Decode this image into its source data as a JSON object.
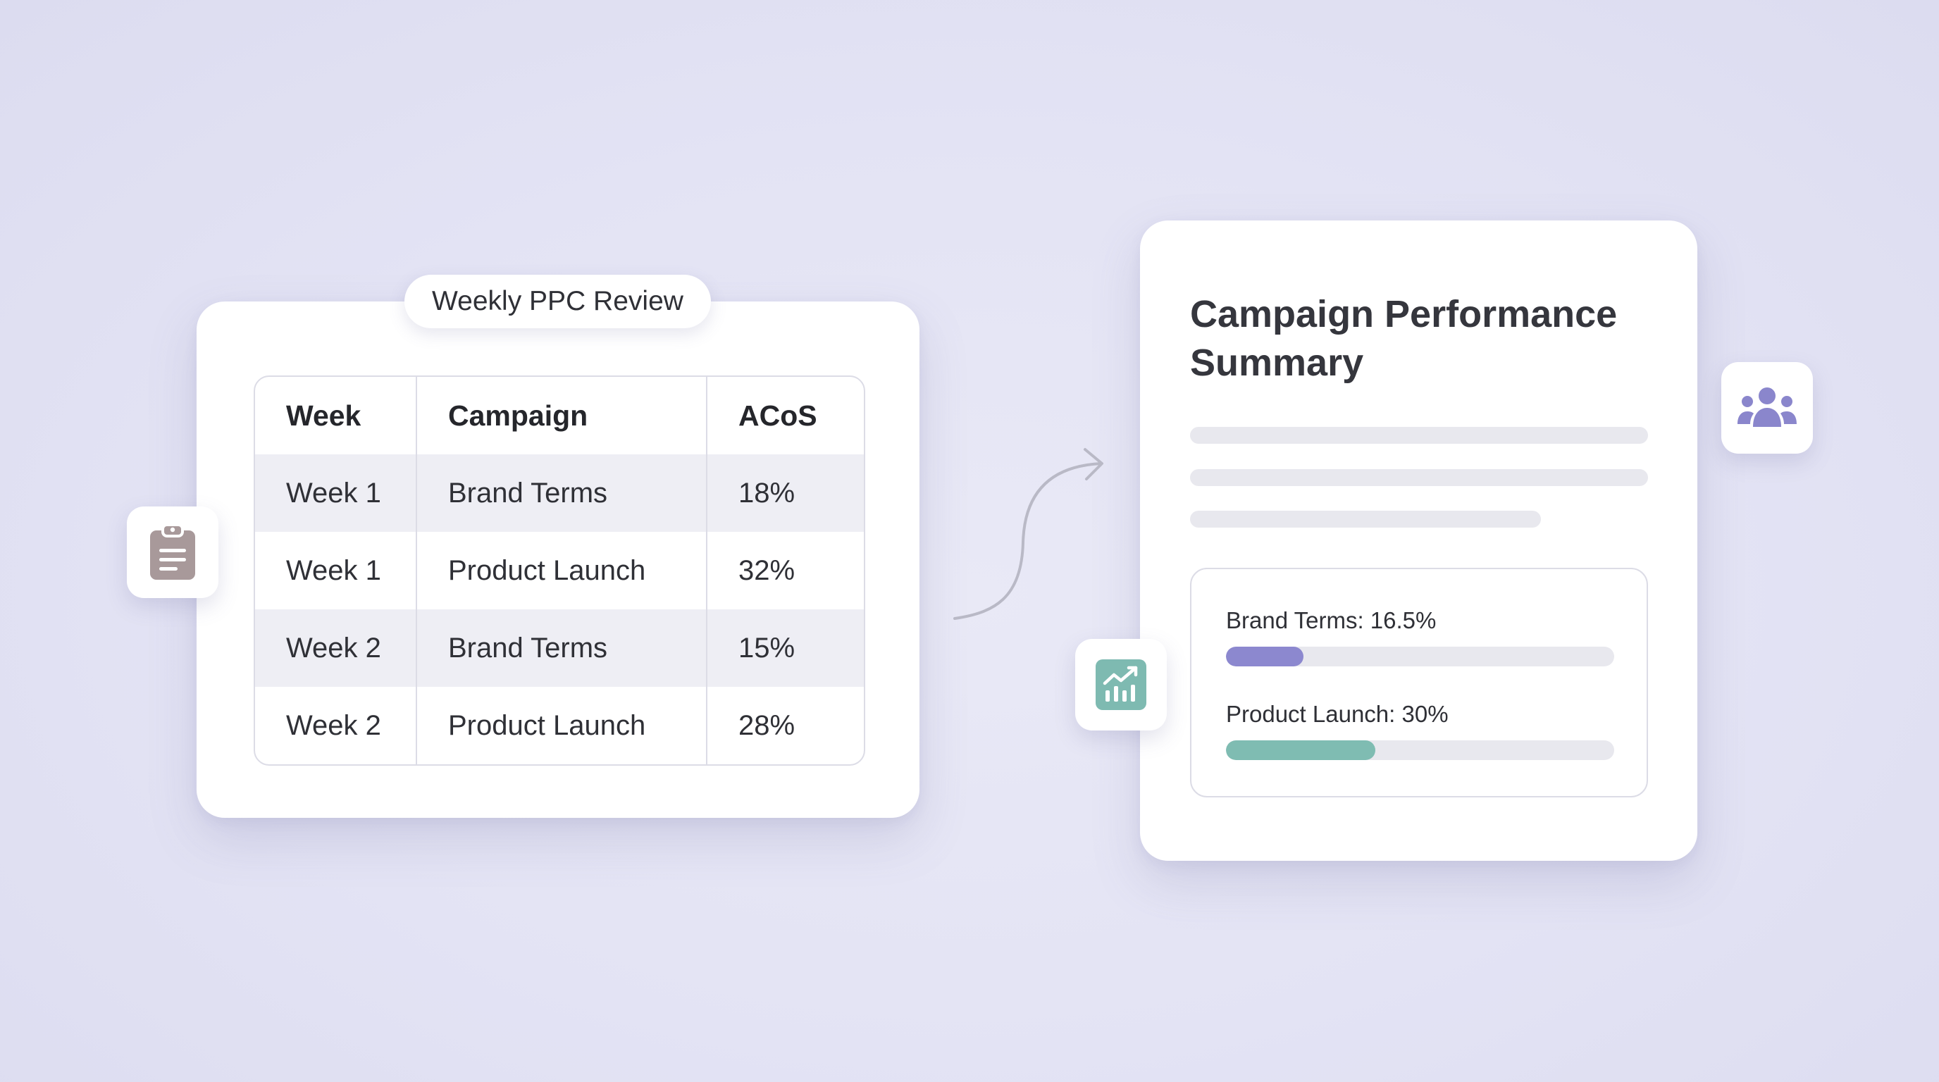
{
  "review_card": {
    "pill_label": "Weekly PPC Review",
    "columns": [
      "Week",
      "Campaign",
      "ACoS"
    ],
    "rows": [
      {
        "week": "Week 1",
        "campaign": "Brand Terms",
        "acos": "18%"
      },
      {
        "week": "Week 1",
        "campaign": "Product Launch",
        "acos": "32%"
      },
      {
        "week": "Week 2",
        "campaign": "Brand Terms",
        "acos": "15%"
      },
      {
        "week": "Week 2",
        "campaign": "Product Launch",
        "acos": "28%"
      }
    ]
  },
  "summary_card": {
    "title": "Campaign Performance Summary",
    "metrics": [
      {
        "label": "Brand Terms: 16.5%",
        "fill_fraction": 0.2,
        "color": "#8c88cf"
      },
      {
        "label": "Product Launch: 30%",
        "fill_fraction": 0.385,
        "color": "#7fbcb2"
      }
    ]
  },
  "icons": {
    "clipboard": "clipboard-icon",
    "chart": "chart-icon",
    "users": "users-icon"
  },
  "colors": {
    "background": "#e4e4f5",
    "clipboard_icon": "#a8999a",
    "chart_icon": "#7ebab1",
    "users_icon": "#8a86cc",
    "connector": "#b9b9c6"
  }
}
